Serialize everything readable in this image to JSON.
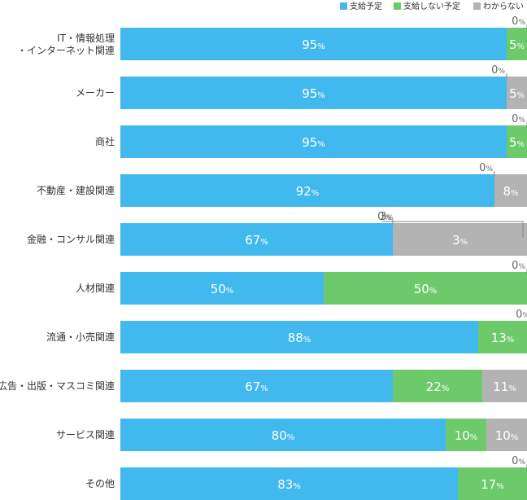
{
  "chart_data": {
    "type": "bar",
    "orientation": "horizontal",
    "stacked": true,
    "percent_suffix": "%",
    "categories": [
      [
        "IT・情報処理",
        "・インターネット関連"
      ],
      [
        "メーカー"
      ],
      [
        "商社"
      ],
      [
        "不動産・建設関連"
      ],
      [
        "金融・コンサル関連"
      ],
      [
        "人材関連"
      ],
      [
        "流通・小売関連"
      ],
      [
        "広告・出版・マスコミ関連"
      ],
      [
        "サービス関連"
      ],
      [
        "その他"
      ]
    ],
    "series": [
      {
        "name": "支給予定",
        "color": "#41b9ef",
        "values": [
          95,
          95,
          95,
          92,
          67,
          50,
          88,
          67,
          80,
          83
        ]
      },
      {
        "name": "支給しない予定",
        "color": "#6cca6a",
        "values": [
          5,
          0,
          5,
          0,
          0,
          50,
          13,
          22,
          10,
          17
        ]
      },
      {
        "name": "わからない",
        "color": "#b3b3b3",
        "values": [
          0,
          5,
          0,
          8,
          3,
          0,
          0,
          11,
          10,
          0
        ]
      }
    ],
    "zero_callouts": [
      [
        {
          "series": 2,
          "label": "0"
        }
      ],
      [
        {
          "series": 1,
          "label": "0"
        }
      ],
      [
        {
          "series": 2,
          "label": "0"
        }
      ],
      [
        {
          "series": 1,
          "label": "0"
        }
      ],
      [
        {
          "series": 1,
          "label": "0"
        }
      ],
      [
        {
          "series": 2,
          "label": "0"
        }
      ],
      [
        {
          "series": 2,
          "label": "0"
        }
      ],
      [],
      [],
      [
        {
          "series": 2,
          "label": "0"
        }
      ]
    ],
    "outside_callouts": [
      [],
      [],
      [],
      [],
      [
        {
          "series": 2,
          "label": "3"
        }
      ],
      [],
      [],
      [],
      [],
      []
    ],
    "xlim": [
      0,
      100
    ],
    "legend": "top-right",
    "grid": false
  }
}
